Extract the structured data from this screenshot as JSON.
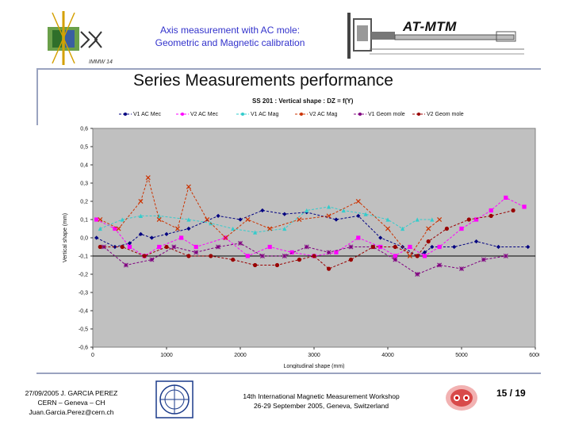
{
  "header": {
    "title_line1": "Axis measurement with AC mole:",
    "title_line2": "Geometric and Magnetic calibration",
    "logo_right_text": "AT-MTM"
  },
  "slide_title": "Series Measurements performance",
  "footer": {
    "left_line1": "27/09/2005 J. GARCIA PEREZ",
    "left_line2": "CERN – Geneva – CH",
    "left_line3": "Juan.Garcia.Perez@cern.ch",
    "mid_line1": "14th International Magnetic Measurement Workshop",
    "mid_line2": "26-29 September 2005, Geneva, Switzerland",
    "page": "15 / 19"
  },
  "colors": {
    "plot_bg": "#c0c0c0",
    "title_blue": "#3333cc",
    "rule": "#9aa3c0"
  },
  "chart_data": {
    "type": "line",
    "title": "SS 201 : Vertical shape : DZ = f(Y)",
    "xlabel": "Longitudinal shape (mm)",
    "ylabel": "Vertical shape (mm)",
    "xlim": [
      0,
      6000
    ],
    "ylim": [
      -0.6,
      0.6
    ],
    "x_ticks": [
      0,
      1000,
      2000,
      3000,
      4000,
      5000,
      6000
    ],
    "x_tick_labels": [
      "0",
      "1000",
      "2000",
      "3000",
      "4000",
      "5000",
      "6000"
    ],
    "y_ticks": [
      0.6,
      0.5,
      0.4,
      0.3,
      0.2,
      0.1,
      0.0,
      -0.1,
      -0.2,
      -0.3,
      -0.4,
      -0.5,
      -0.6
    ],
    "y_tick_labels": [
      "0,6",
      "0,5",
      "0,4",
      "0,3",
      "0,2",
      "0,1",
      "0,0",
      "-0,1",
      "-0,2",
      "-0,3",
      "-0,4",
      "-0,5",
      "-0,6"
    ],
    "grid": false,
    "legend_position": "top",
    "series": [
      {
        "name": "V1 AC Mec",
        "color": "#000080",
        "marker": "diamond",
        "x": [
          50,
          300,
          500,
          650,
          800,
          1000,
          1300,
          1700,
          2000,
          2300,
          2600,
          2900,
          3300,
          3600,
          3900,
          4200,
          4400,
          4500,
          4600,
          4900,
          5200,
          5500,
          5900
        ],
        "y": [
          0.0,
          -0.05,
          -0.03,
          0.02,
          0.0,
          0.02,
          0.05,
          0.12,
          0.1,
          0.15,
          0.13,
          0.14,
          0.1,
          0.12,
          0.0,
          -0.05,
          -0.1,
          -0.08,
          -0.05,
          -0.05,
          -0.02,
          -0.05,
          -0.05
        ]
      },
      {
        "name": "V2 AC Mec",
        "color": "#ff00ff",
        "marker": "square",
        "x": [
          50,
          300,
          500,
          700,
          900,
          1200,
          1400,
          1800,
          2100,
          2400,
          2700,
          3000,
          3300,
          3600,
          3900,
          4100,
          4300,
          4500,
          4700,
          5000,
          5200,
          5400,
          5600,
          5850
        ],
        "y": [
          0.1,
          0.05,
          -0.05,
          -0.1,
          -0.05,
          0.0,
          -0.05,
          0.0,
          -0.1,
          -0.05,
          -0.08,
          -0.1,
          -0.08,
          0.0,
          -0.05,
          -0.1,
          -0.05,
          -0.1,
          -0.05,
          0.05,
          0.1,
          0.15,
          0.22,
          0.17
        ]
      },
      {
        "name": "V1 AC Mag",
        "color": "#33cccc",
        "marker": "triangle",
        "x": [
          100,
          400,
          650,
          900,
          1300,
          1600,
          1900,
          2200,
          2600,
          2900,
          3200,
          3400,
          3700,
          4000,
          4200,
          4400,
          4600
        ],
        "y": [
          0.05,
          0.1,
          0.12,
          0.12,
          0.1,
          0.08,
          0.05,
          0.03,
          0.05,
          0.15,
          0.17,
          0.15,
          0.13,
          0.1,
          0.05,
          0.1,
          0.1
        ]
      },
      {
        "name": "V2 AC Mag",
        "color": "#cc3300",
        "marker": "x",
        "x": [
          100,
          350,
          650,
          750,
          900,
          1150,
          1300,
          1550,
          1800,
          2100,
          2400,
          2800,
          3200,
          3600,
          4000,
          4300,
          4550,
          4700
        ],
        "y": [
          0.1,
          0.05,
          0.2,
          0.33,
          0.1,
          0.05,
          0.28,
          0.1,
          0.0,
          0.1,
          0.05,
          0.1,
          0.12,
          0.2,
          0.05,
          -0.1,
          0.05,
          0.1
        ]
      },
      {
        "name": "V1 Geom mole",
        "color": "#800080",
        "marker": "star",
        "x": [
          150,
          450,
          800,
          1100,
          1400,
          1700,
          2000,
          2300,
          2600,
          2900,
          3200,
          3500,
          3800,
          4100,
          4400,
          4700,
          5000,
          5300,
          5600
        ],
        "y": [
          -0.05,
          -0.15,
          -0.12,
          -0.05,
          -0.08,
          -0.05,
          -0.03,
          -0.1,
          -0.1,
          -0.05,
          -0.08,
          -0.05,
          -0.05,
          -0.12,
          -0.2,
          -0.15,
          -0.17,
          -0.12,
          -0.1
        ]
      },
      {
        "name": "V2 Geom mole",
        "color": "#990000",
        "marker": "circle",
        "x": [
          100,
          400,
          700,
          1000,
          1300,
          1600,
          1900,
          2200,
          2500,
          2800,
          3000,
          3200,
          3500,
          3800,
          4100,
          4400,
          4550,
          4800,
          5100,
          5400,
          5700
        ],
        "y": [
          -0.05,
          -0.05,
          -0.1,
          -0.05,
          -0.1,
          -0.1,
          -0.12,
          -0.15,
          -0.15,
          -0.12,
          -0.1,
          -0.17,
          -0.12,
          -0.05,
          -0.05,
          -0.1,
          -0.02,
          0.05,
          0.1,
          0.12,
          0.15
        ]
      }
    ]
  }
}
